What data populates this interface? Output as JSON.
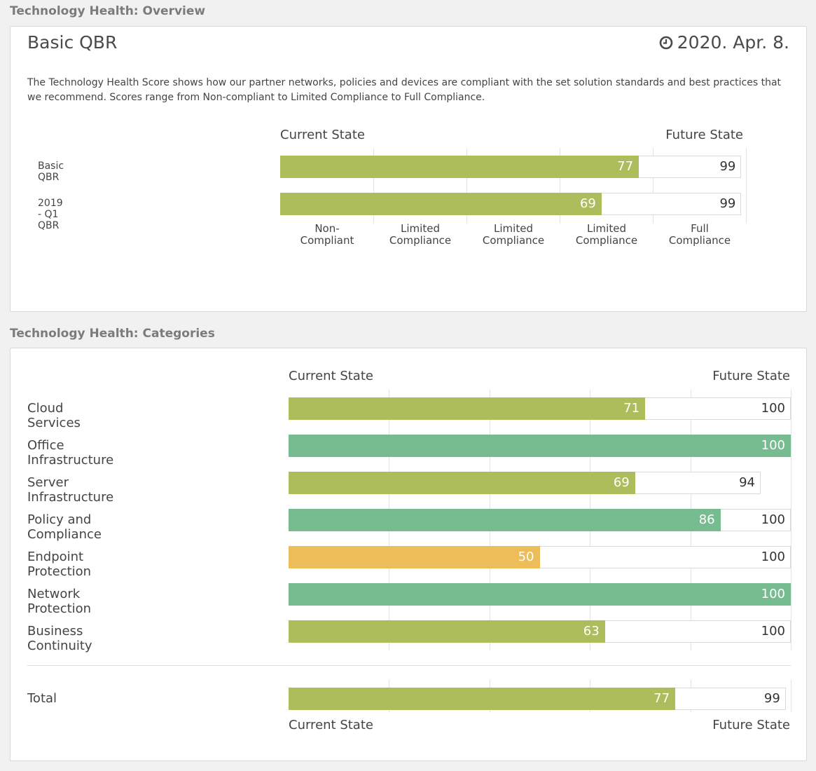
{
  "overview": {
    "section_title": "Technology Health: Overview",
    "report_name": "Basic QBR",
    "date": "2020. Apr. 8.",
    "date_icon": "clock-icon",
    "description": "The Technology Health Score shows how our partner networks, policies and devices are compliant with the set solution standards and best practices that we recommend. Scores range from Non-compliant to Limited Compliance to Full Compliance.",
    "current_state_label": "Current State",
    "future_state_label": "Future State",
    "ticks": [
      "Non-\nCompliant",
      "Limited\nCompliance",
      "Limited\nCompliance",
      "Limited\nCompliance",
      "Full\nCompliance"
    ],
    "rows": [
      {
        "label": "Basic QBR",
        "current": 77,
        "future": 99,
        "color": "#adbd5c"
      },
      {
        "label": "2019 - Q1 QBR",
        "current": 69,
        "future": 99,
        "color": "#adbd5c"
      }
    ]
  },
  "categories": {
    "section_title": "Technology Health: Categories",
    "current_state_label": "Current State",
    "future_state_label": "Future State",
    "rows": [
      {
        "label": "Cloud Services",
        "current": 71,
        "future": 100,
        "color": "#adbd5c"
      },
      {
        "label": "Office Infrastructure",
        "current": 100,
        "future": 100,
        "color": "#77bb91"
      },
      {
        "label": "Server Infrastructure",
        "current": 69,
        "future": 94,
        "color": "#adbd5c"
      },
      {
        "label": "Policy and Compliance",
        "current": 86,
        "future": 100,
        "color": "#77bb91"
      },
      {
        "label": "Endpoint Protection",
        "current": 50,
        "future": 100,
        "color": "#ecbd58"
      },
      {
        "label": "Network Protection",
        "current": 100,
        "future": 100,
        "color": "#77bb91"
      },
      {
        "label": "Business Continuity",
        "current": 63,
        "future": 100,
        "color": "#adbd5c"
      }
    ],
    "total": {
      "label": "Total",
      "current": 77,
      "future": 99,
      "color": "#adbd5c"
    },
    "bottom_current_state_label": "Current State",
    "bottom_future_state_label": "Future State"
  }
}
